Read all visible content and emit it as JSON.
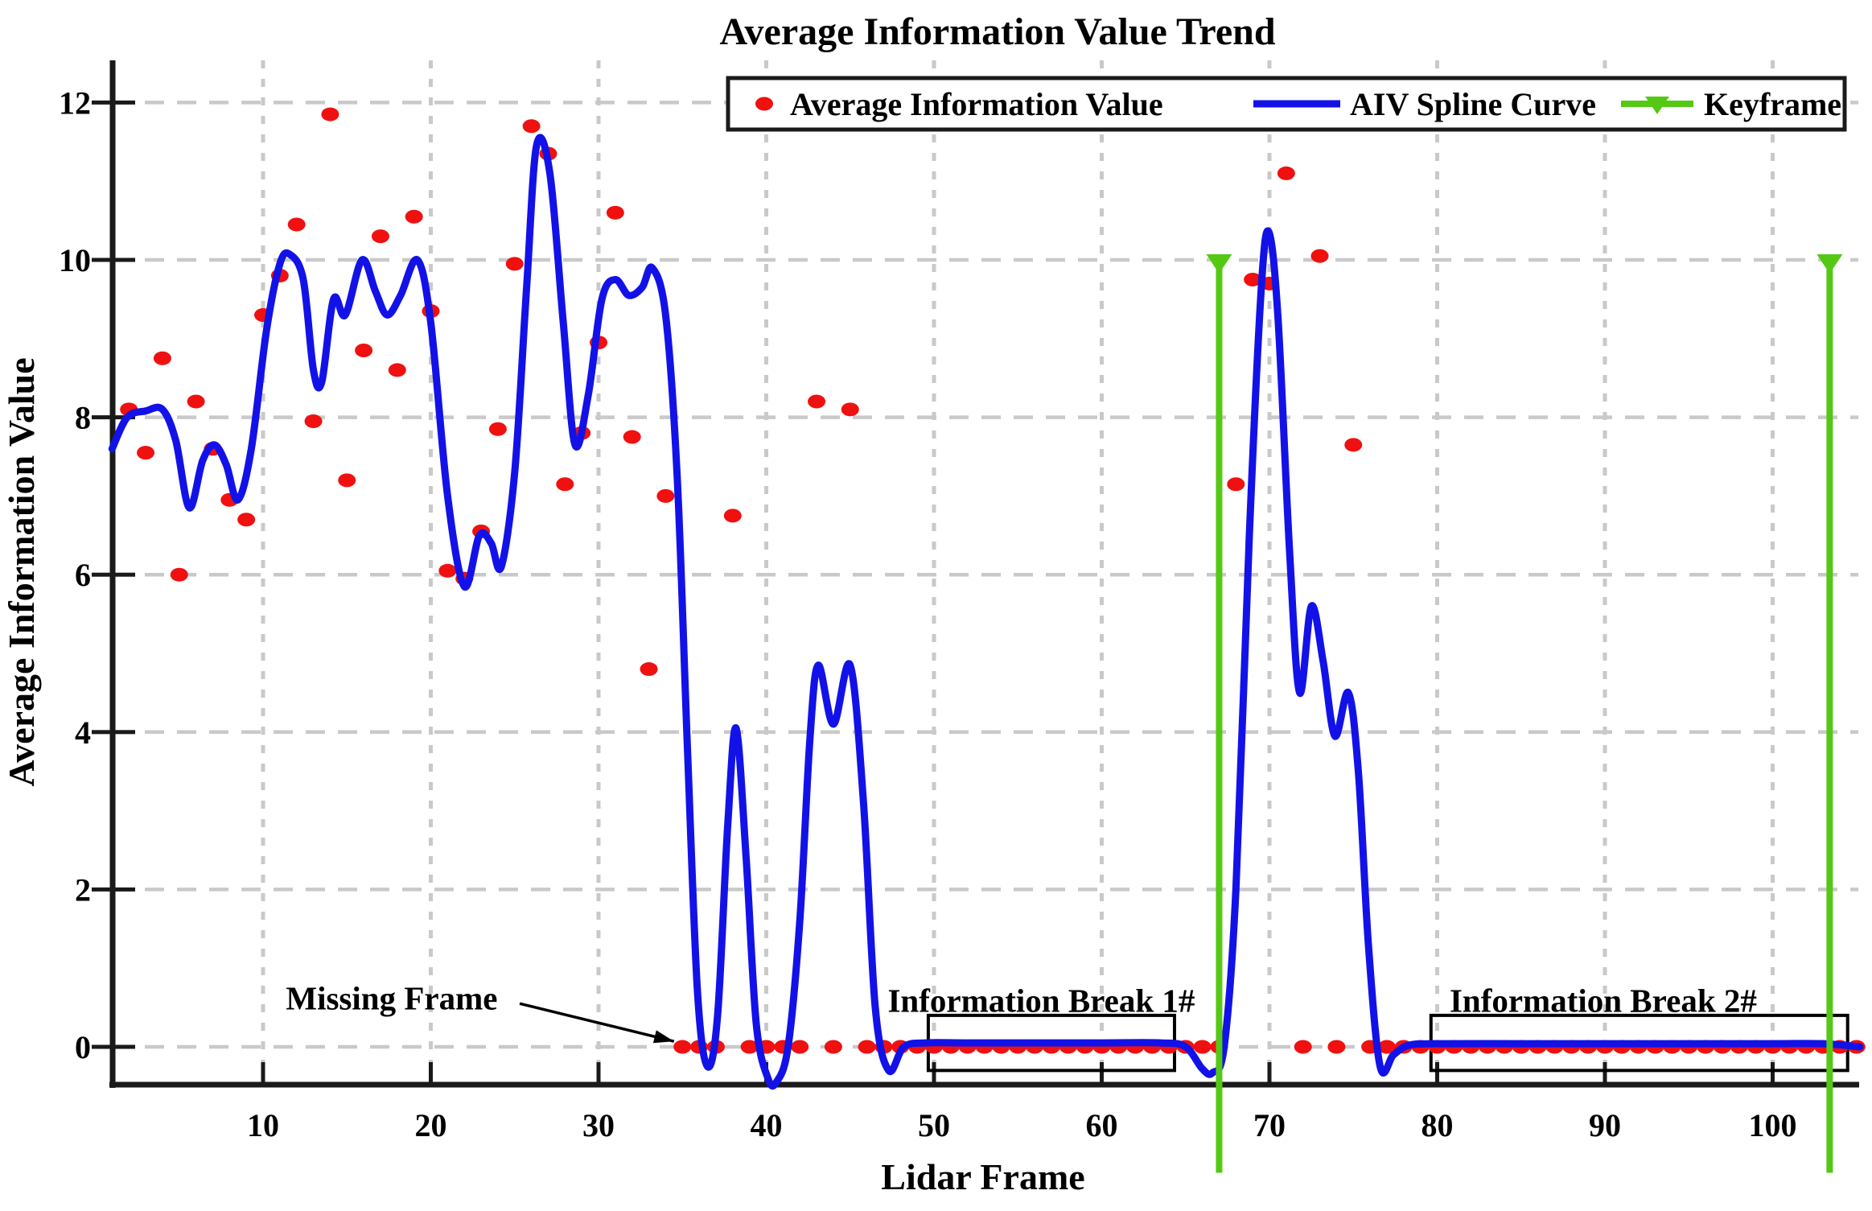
{
  "title": "Average Information Value Trend",
  "legend": {
    "items": [
      {
        "label": "Average Information Value",
        "marker": "red-dot"
      },
      {
        "label": "AIV Spline Curve",
        "marker": "blue-line"
      },
      {
        "label": "Keyframe",
        "marker": "green-stem-triangle"
      }
    ]
  },
  "axes": {
    "xlabel": "Lidar Frame",
    "ylabel": "Average Information Value",
    "x_ticks": [
      10,
      20,
      30,
      40,
      50,
      60,
      70,
      80,
      90,
      100
    ],
    "y_ticks": [
      0,
      2,
      4,
      6,
      8,
      10,
      12
    ],
    "xlim": [
      1,
      104.6
    ],
    "ylim": [
      -0.48,
      12.55
    ],
    "grid": "dashed"
  },
  "colors": {
    "dot": "#F01010",
    "spline": "#1212E8",
    "keyframe": "#55C814",
    "grid": "#C9C9C9",
    "axis": "#1a1a1a",
    "background": "#ffffff"
  },
  "chart_data": {
    "type": "line+scatter",
    "series": [
      {
        "name": "Average Information Value",
        "type": "scatter",
        "color": "#F01010",
        "points": [
          [
            2,
            8.1
          ],
          [
            3,
            7.55
          ],
          [
            4,
            8.75
          ],
          [
            5,
            6.0
          ],
          [
            6,
            8.2
          ],
          [
            7,
            7.6
          ],
          [
            8,
            6.95
          ],
          [
            9,
            6.7
          ],
          [
            10,
            9.3
          ],
          [
            11,
            9.8
          ],
          [
            12,
            10.45
          ],
          [
            13,
            7.95
          ],
          [
            14,
            11.85
          ],
          [
            15,
            7.2
          ],
          [
            16,
            8.85
          ],
          [
            17,
            10.3
          ],
          [
            18,
            8.6
          ],
          [
            19,
            10.55
          ],
          [
            20,
            9.35
          ],
          [
            21,
            6.05
          ],
          [
            22,
            5.95
          ],
          [
            23,
            6.55
          ],
          [
            24,
            7.85
          ],
          [
            25,
            9.95
          ],
          [
            26,
            11.7
          ],
          [
            27,
            11.35
          ],
          [
            28,
            7.15
          ],
          [
            29,
            7.8
          ],
          [
            30,
            8.95
          ],
          [
            31,
            10.6
          ],
          [
            32,
            7.75
          ],
          [
            33,
            4.8
          ],
          [
            34,
            7.0
          ],
          [
            35,
            0
          ],
          [
            36,
            0
          ],
          [
            37,
            0
          ],
          [
            38,
            6.75
          ],
          [
            39,
            0
          ],
          [
            40,
            0
          ],
          [
            41,
            0
          ],
          [
            42,
            0
          ],
          [
            43,
            8.2
          ],
          [
            44,
            0
          ],
          [
            45,
            8.1
          ],
          [
            46,
            0
          ],
          [
            47,
            0
          ],
          [
            48,
            0
          ],
          [
            49,
            0
          ],
          [
            50,
            0
          ],
          [
            51,
            0
          ],
          [
            52,
            0
          ],
          [
            53,
            0
          ],
          [
            54,
            0
          ],
          [
            55,
            0
          ],
          [
            56,
            0
          ],
          [
            57,
            0
          ],
          [
            58,
            0
          ],
          [
            59,
            0
          ],
          [
            60,
            0
          ],
          [
            61,
            0
          ],
          [
            62,
            0
          ],
          [
            63,
            0
          ],
          [
            64,
            0
          ],
          [
            65,
            0
          ],
          [
            66,
            0
          ],
          [
            67,
            0
          ],
          [
            68,
            7.15
          ],
          [
            69,
            9.75
          ],
          [
            70,
            9.7
          ],
          [
            71,
            11.1
          ],
          [
            72,
            0
          ],
          [
            73,
            10.05
          ],
          [
            74,
            0
          ],
          [
            75,
            7.65
          ],
          [
            76,
            0
          ],
          [
            77,
            0
          ],
          [
            78,
            0
          ],
          [
            79,
            0
          ],
          [
            80,
            0
          ],
          [
            81,
            0
          ],
          [
            82,
            0
          ],
          [
            83,
            0
          ],
          [
            84,
            0
          ],
          [
            85,
            0
          ],
          [
            86,
            0
          ],
          [
            87,
            0
          ],
          [
            88,
            0
          ],
          [
            89,
            0
          ],
          [
            90,
            0
          ],
          [
            91,
            0
          ],
          [
            92,
            0
          ],
          [
            93,
            0
          ],
          [
            94,
            0
          ],
          [
            95,
            0
          ],
          [
            96,
            0
          ],
          [
            97,
            0
          ],
          [
            98,
            0
          ],
          [
            99,
            0
          ],
          [
            100,
            0
          ],
          [
            101,
            0
          ],
          [
            102,
            0
          ],
          [
            103,
            0
          ],
          [
            104,
            0
          ],
          [
            105,
            0
          ]
        ]
      },
      {
        "name": "AIV Spline Curve",
        "type": "line",
        "color": "#1212E8",
        "points": [
          [
            1.0,
            7.6
          ],
          [
            1.9,
            8.0
          ],
          [
            3.0,
            8.08
          ],
          [
            4.0,
            8.1
          ],
          [
            4.8,
            7.7
          ],
          [
            5.6,
            6.85
          ],
          [
            6.4,
            7.45
          ],
          [
            7.1,
            7.65
          ],
          [
            7.8,
            7.4
          ],
          [
            8.5,
            6.95
          ],
          [
            9.3,
            7.6
          ],
          [
            10.2,
            9.1
          ],
          [
            11.0,
            9.95
          ],
          [
            11.6,
            10.07
          ],
          [
            12.4,
            9.75
          ],
          [
            13.0,
            8.6
          ],
          [
            13.5,
            8.45
          ],
          [
            14.2,
            9.5
          ],
          [
            14.9,
            9.3
          ],
          [
            15.9,
            10.0
          ],
          [
            16.7,
            9.6
          ],
          [
            17.4,
            9.3
          ],
          [
            18.2,
            9.55
          ],
          [
            19.2,
            10.0
          ],
          [
            20.0,
            9.2
          ],
          [
            21.0,
            7.0
          ],
          [
            22.0,
            5.85
          ],
          [
            22.9,
            6.5
          ],
          [
            23.6,
            6.4
          ],
          [
            24.2,
            6.1
          ],
          [
            25.0,
            7.3
          ],
          [
            25.7,
            9.6
          ],
          [
            26.3,
            11.45
          ],
          [
            27.1,
            11.1
          ],
          [
            27.9,
            9.2
          ],
          [
            28.6,
            7.65
          ],
          [
            29.4,
            8.3
          ],
          [
            30.2,
            9.5
          ],
          [
            31.0,
            9.75
          ],
          [
            31.8,
            9.55
          ],
          [
            32.6,
            9.65
          ],
          [
            33.2,
            9.9
          ],
          [
            34.0,
            9.3
          ],
          [
            34.7,
            7.2
          ],
          [
            35.3,
            3.8
          ],
          [
            35.9,
            0.7
          ],
          [
            36.5,
            -0.25
          ],
          [
            37.1,
            0.4
          ],
          [
            37.7,
            2.8
          ],
          [
            38.2,
            4.05
          ],
          [
            38.8,
            2.4
          ],
          [
            39.4,
            0.3
          ],
          [
            40.1,
            -0.4
          ],
          [
            40.6,
            -0.45
          ],
          [
            41.3,
            0.0
          ],
          [
            42.0,
            1.6
          ],
          [
            42.6,
            3.9
          ],
          [
            43.1,
            4.85
          ],
          [
            44.0,
            4.1
          ],
          [
            45.0,
            4.85
          ],
          [
            45.8,
            3.1
          ],
          [
            46.5,
            0.5
          ],
          [
            47.3,
            -0.3
          ],
          [
            48.2,
            0.0
          ],
          [
            49.5,
            0.05
          ],
          [
            52,
            0.05
          ],
          [
            56,
            0.05
          ],
          [
            60,
            0.05
          ],
          [
            63.5,
            0.05
          ],
          [
            65.0,
            0.0
          ],
          [
            66.0,
            -0.28
          ],
          [
            66.6,
            -0.33
          ],
          [
            67.3,
            0.0
          ],
          [
            68.0,
            2.0
          ],
          [
            68.8,
            6.5
          ],
          [
            69.5,
            9.6
          ],
          [
            69.95,
            10.36
          ],
          [
            70.5,
            9.3
          ],
          [
            71.2,
            6.3
          ],
          [
            71.8,
            4.5
          ],
          [
            72.5,
            5.6
          ],
          [
            73.2,
            4.9
          ],
          [
            73.9,
            3.95
          ],
          [
            74.7,
            4.5
          ],
          [
            75.3,
            3.5
          ],
          [
            75.9,
            1.3
          ],
          [
            76.6,
            -0.25
          ],
          [
            77.4,
            -0.1
          ],
          [
            78.3,
            0.02
          ],
          [
            80,
            0.04
          ],
          [
            85,
            0.04
          ],
          [
            90,
            0.04
          ],
          [
            95,
            0.04
          ],
          [
            100,
            0.04
          ],
          [
            103,
            0.04
          ],
          [
            105.2,
            0.0
          ]
        ]
      },
      {
        "name": "Keyframe",
        "type": "stem",
        "color": "#55C814",
        "x": [
          67,
          103.4
        ],
        "top": 10,
        "bottom": -1.6
      }
    ],
    "boxes": [
      {
        "name": "info-break-1",
        "x0": 49.66,
        "x1": 64.34,
        "y0": -0.3,
        "y1": 0.4
      },
      {
        "name": "info-break-2",
        "x0": 79.63,
        "x1": 104.47,
        "y0": -0.3,
        "y1": 0.4
      }
    ],
    "annotations": [
      {
        "text": "Missing Frame",
        "x": 17.67,
        "y": 0.62,
        "arrow_from": [
          25.3,
          0.55
        ],
        "arrow_to": [
          34.5,
          0.07
        ]
      },
      {
        "text": "Information Break 1#",
        "x": 56.4,
        "y": 0.59
      },
      {
        "text": "Information Break 2#",
        "x": 89.9,
        "y": 0.59
      }
    ]
  }
}
